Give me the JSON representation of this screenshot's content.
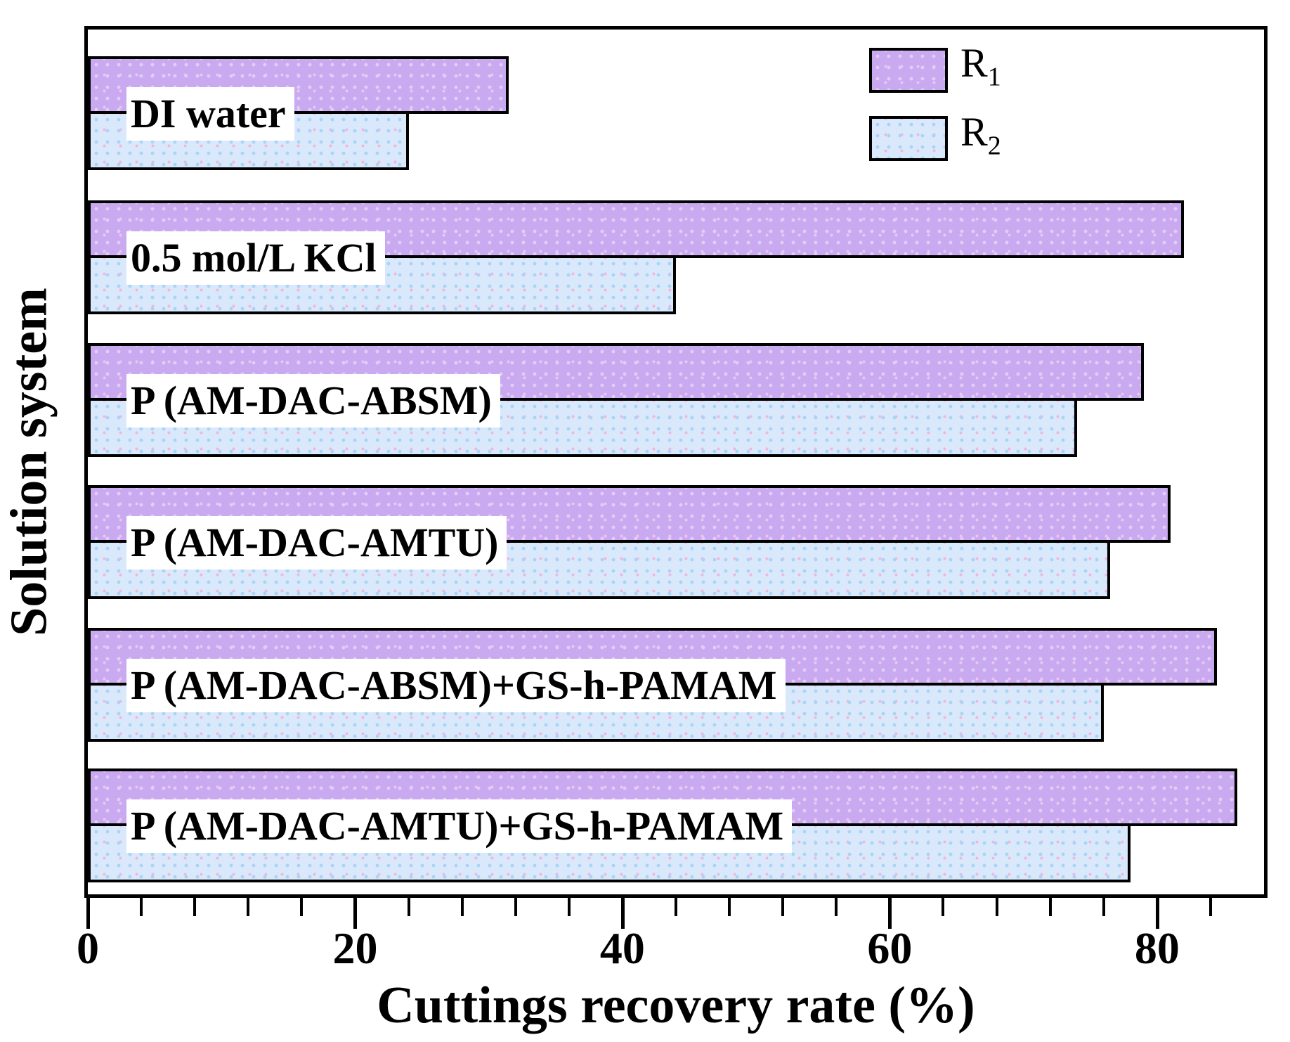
{
  "figure": {
    "background": "#ffffff",
    "frame_color": "#000000"
  },
  "chart_data": {
    "type": "bar",
    "orientation": "horizontal",
    "title": "",
    "xlabel": "Cuttings recovery rate (%)",
    "ylabel": "Solution system",
    "xlim": [
      0,
      88
    ],
    "xticks": [
      0,
      20,
      40,
      60,
      80
    ],
    "minor_tick_step": 4,
    "grid": false,
    "legend_position": "top-right-inside",
    "categories": [
      "DI water",
      "0.5 mol/L KCl",
      "P (AM-DAC-ABSM)",
      "P (AM-DAC-AMTU)",
      "P (AM-DAC-ABSM)+GS-h-PAMAM",
      "P (AM-DAC-AMTU)+GS-h-PAMAM"
    ],
    "series": [
      {
        "name": "R1",
        "label_base": "R",
        "label_sub": "1",
        "color": "#c9a9f0",
        "dot_color_1": "#e1cef8",
        "dot_color_2": "#edc6ee",
        "values": [
          31.5,
          82,
          79,
          81,
          84.5,
          86
        ]
      },
      {
        "name": "R2",
        "label_base": "R",
        "label_sub": "2",
        "color": "#d9e9fb",
        "dot_color_1": "#a9d4f6",
        "dot_color_2": "#f6b4d9",
        "values": [
          24,
          44,
          74,
          76.5,
          76,
          78
        ]
      }
    ]
  }
}
